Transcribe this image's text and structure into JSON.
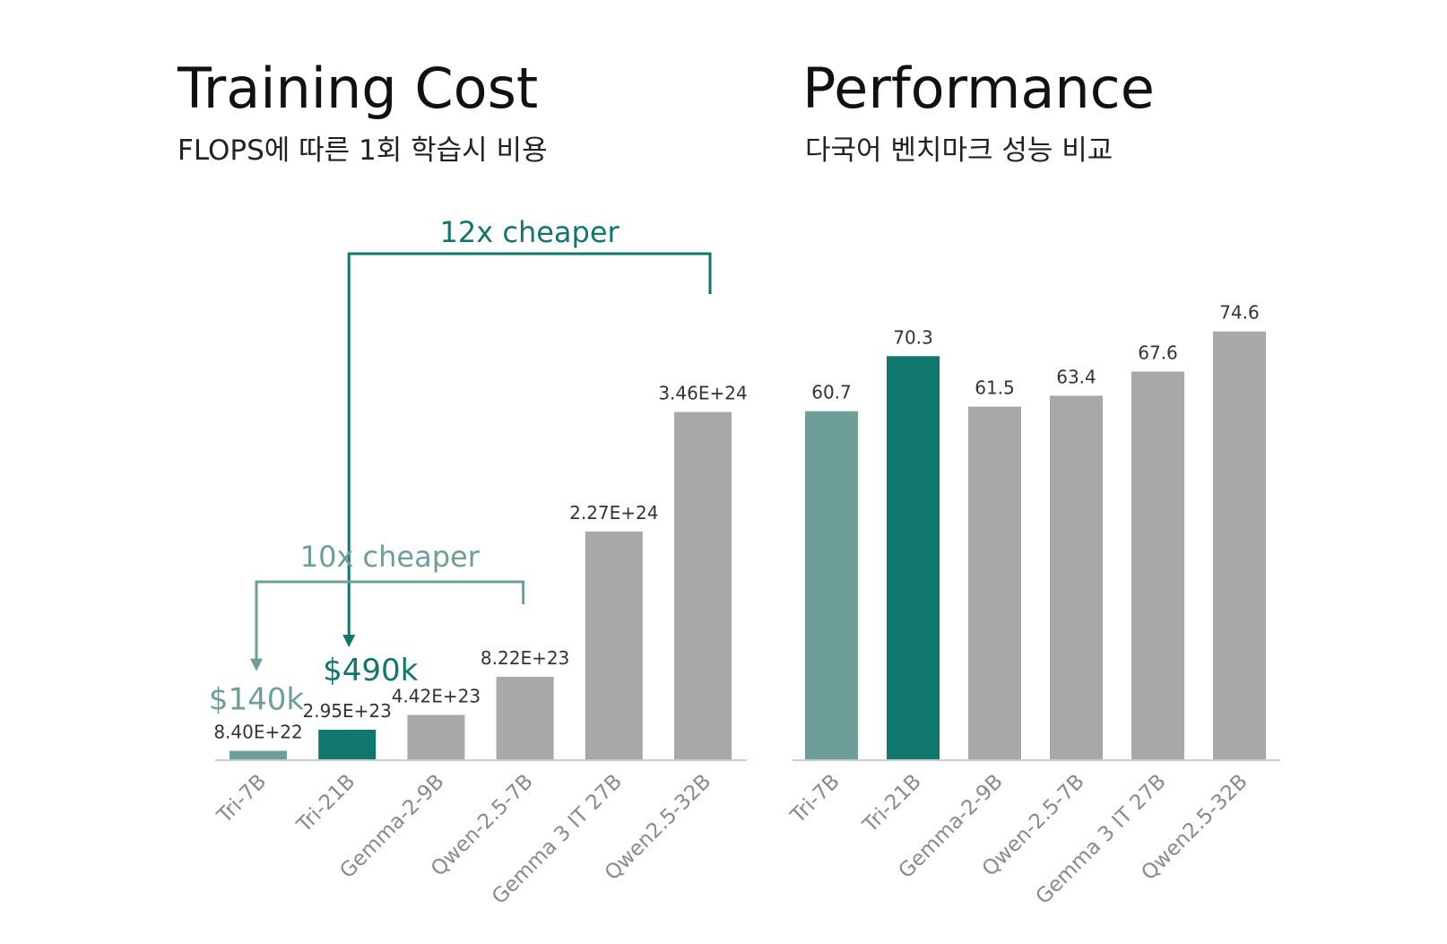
{
  "colors": {
    "light_teal": "#6d9f98",
    "dark_teal": "#10776d",
    "gray": "#a8a8a8",
    "axis": "#cccccc"
  },
  "chart_data": [
    {
      "type": "bar",
      "title": "Training Cost",
      "subtitle": "FLOPS에 따른 1회 학습시 비용",
      "categories": [
        "Tri-7B",
        "Tri-21B",
        "Gemma-2-9B",
        "Qwen-2.5-7B",
        "Gemma 3 IT 27B",
        "Qwen2.5-32B"
      ],
      "values": [
        8.4e+22,
        2.95e+23,
        4.42e+23,
        8.22e+23,
        2.27e+24,
        3.46e+24
      ],
      "value_labels": [
        "8.40E+22",
        "2.95E+23",
        "4.42E+23",
        "8.22E+23",
        "2.27E+24",
        "3.46E+24"
      ],
      "bar_colors": [
        "#6d9f98",
        "#10776d",
        "#a8a8a8",
        "#a8a8a8",
        "#a8a8a8",
        "#a8a8a8"
      ],
      "ylim": [
        0,
        4.6e+24
      ],
      "annotations": {
        "cost_labels": [
          {
            "category": "Tri-7B",
            "text": "$140k",
            "color": "#6d9f98"
          },
          {
            "category": "Tri-21B",
            "text": "$490k",
            "color": "#10776d"
          }
        ],
        "brackets": [
          {
            "from": "Qwen2.5-32B",
            "to": "Tri-21B",
            "text": "12x cheaper",
            "color": "#10776d"
          },
          {
            "from": "Qwen-2.5-7B",
            "to": "Tri-7B",
            "text": "10x cheaper",
            "color": "#6d9f98"
          }
        ]
      },
      "grid": false,
      "legend": "none"
    },
    {
      "type": "bar",
      "title": "Performance",
      "subtitle": "다국어 벤치마크 성능 비교",
      "categories": [
        "Tri-7B",
        "Tri-21B",
        "Gemma-2-9B",
        "Qwen-2.5-7B",
        "Gemma 3 IT 27B",
        "Qwen2.5-32B"
      ],
      "values": [
        60.7,
        70.3,
        61.5,
        63.4,
        67.6,
        74.6
      ],
      "value_labels": [
        "60.7",
        "70.3",
        "61.5",
        "63.4",
        "67.6",
        "74.6"
      ],
      "bar_colors": [
        "#6d9f98",
        "#10776d",
        "#a8a8a8",
        "#a8a8a8",
        "#a8a8a8",
        "#a8a8a8"
      ],
      "ylim": [
        0,
        80.5
      ],
      "grid": false,
      "legend": "none"
    }
  ]
}
